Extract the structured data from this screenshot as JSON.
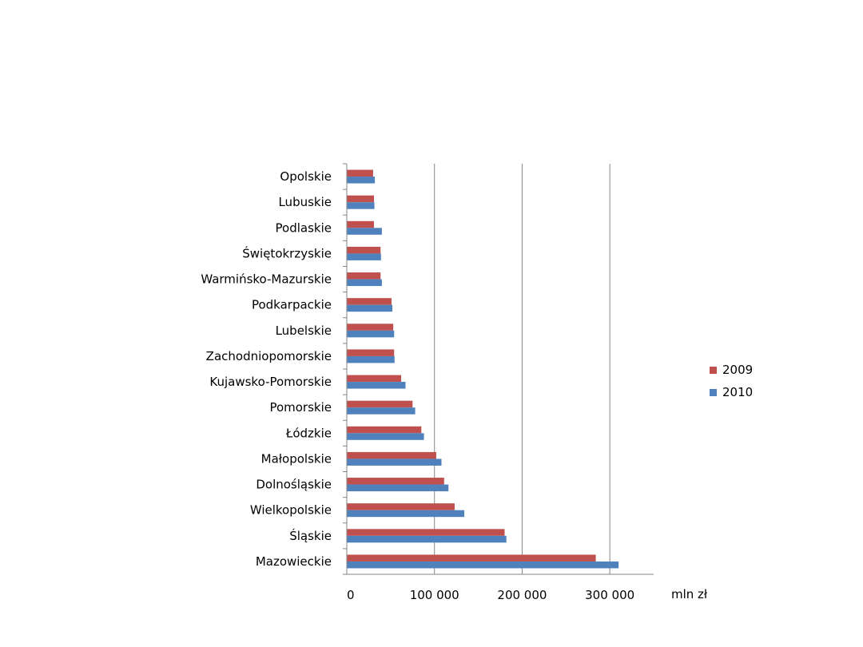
{
  "chart_data": {
    "type": "bar",
    "orientation": "horizontal",
    "categories": [
      "Mazowieckie",
      "Śląskie",
      "Wielkopolskie",
      "Dolnośląskie",
      "Małopolskie",
      "Łódzkie",
      "Pomorskie",
      "Kujawsko-Pomorskie",
      "Zachodniopomorskie",
      "Lubelskie",
      "Podkarpackie",
      "Warmińsko-Mazurskie",
      "Świętokrzyskie",
      "Podlaskie",
      "Lubuskie",
      "Opolskie"
    ],
    "series": [
      {
        "name": "2009",
        "color": "#c0504d",
        "values": [
          284000,
          180000,
          123000,
          111000,
          102000,
          85000,
          75000,
          62000,
          54000,
          53000,
          51000,
          38500,
          38500,
          31000,
          31000,
          30000
        ]
      },
      {
        "name": "2010",
        "color": "#4f81bd",
        "values": [
          310000,
          182000,
          134000,
          116000,
          108000,
          88000,
          78000,
          67000,
          54500,
          54000,
          52000,
          40000,
          39000,
          40000,
          31500,
          32000
        ]
      }
    ],
    "xticks": [
      "0",
      "100 000",
      "200 000",
      "300 000"
    ],
    "xlim": [
      0,
      350000
    ],
    "xlabel": "mln zł",
    "ylabel": "",
    "title": "",
    "grid": "vertical major gridlines",
    "legend": "right"
  }
}
